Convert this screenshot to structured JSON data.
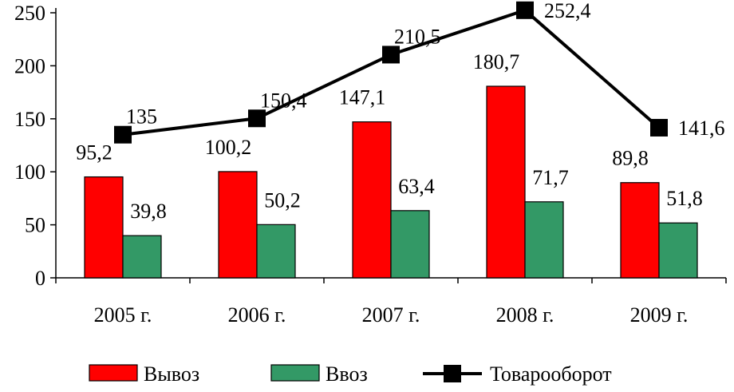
{
  "chart_data": {
    "type": "bar",
    "categories": [
      "2005 г.",
      "2006 г.",
      "2007 г.",
      "2008 г.",
      "2009 г."
    ],
    "series": [
      {
        "name": "Вывоз",
        "kind": "bar",
        "color": "#ff0000",
        "values": [
          95.2,
          100.2,
          147.1,
          180.7,
          89.8
        ],
        "labels": [
          "95,2",
          "100,2",
          "147,1",
          "180,7",
          "89,8"
        ]
      },
      {
        "name": "Ввоз",
        "kind": "bar",
        "color": "#339966",
        "values": [
          39.8,
          50.2,
          63.4,
          71.7,
          51.8
        ],
        "labels": [
          "39,8",
          "50,2",
          "63,4",
          "71,7",
          "51,8"
        ]
      },
      {
        "name": "Товарооборот",
        "kind": "line",
        "color": "#000000",
        "values": [
          135,
          150.4,
          210.5,
          252.4,
          141.6
        ],
        "labels": [
          "135",
          "150,4",
          "210,5",
          "252,4",
          "141,6"
        ]
      }
    ],
    "ylim": [
      0,
      250
    ],
    "yticks": [
      0,
      50,
      100,
      150,
      200,
      250
    ],
    "ytick_labels": [
      "0",
      "50",
      "100",
      "150",
      "200",
      "250"
    ],
    "legend_position": "bottom",
    "grid": false
  }
}
